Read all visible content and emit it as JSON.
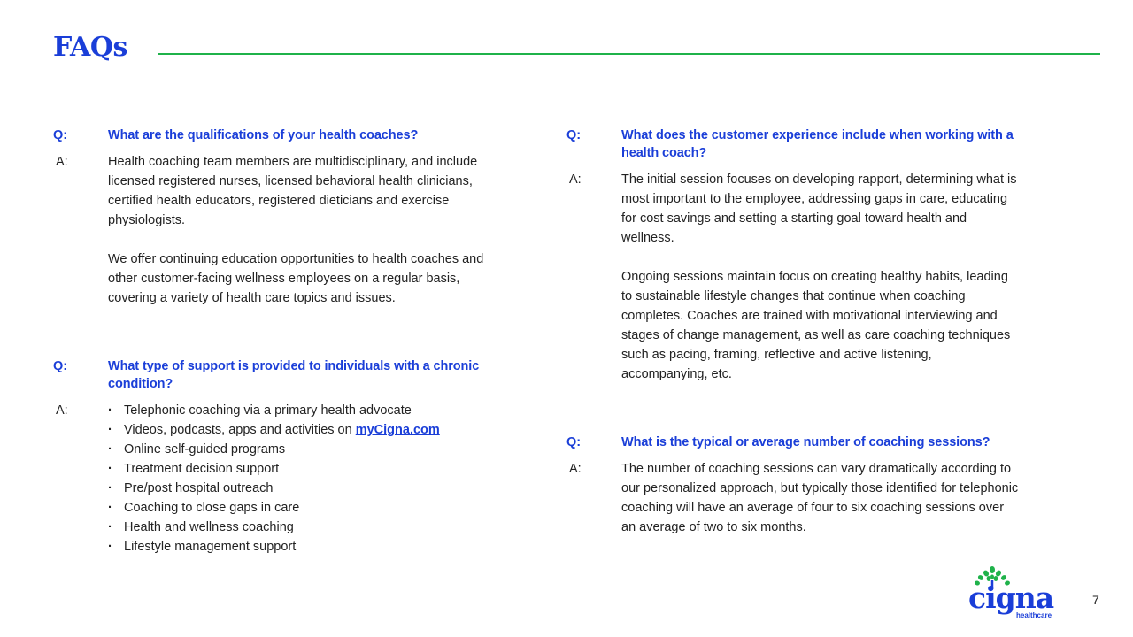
{
  "header": {
    "title": "FAQs"
  },
  "left": {
    "q1": {
      "q_tag": "Q:",
      "question": "What are the qualifications of your health coaches?",
      "a_tag": "A:",
      "answer_paragraphs": [
        "Health coaching team members are multidisciplinary, and include licensed registered nurses, licensed behavioral health clinicians, certified health educators, registered dieticians and exercise physiologists.",
        "We offer continuing education opportunities to health coaches and other customer-facing wellness employees on a regular basis, covering a variety of health care topics and issues."
      ]
    },
    "q2": {
      "q_tag": "Q:",
      "question": "What type of support is provided to individuals with a chronic condition?",
      "a_tag": "A:",
      "bullets": [
        "Telephonic coaching via a primary health advocate",
        "Videos, podcasts, apps and activities on",
        "Online self-guided programs",
        "Treatment decision support",
        "Pre/post hospital outreach",
        "Coaching to close gaps in care",
        "Health and wellness coaching",
        "Lifestyle management support"
      ],
      "link_text": "myCigna.com"
    }
  },
  "right": {
    "q3": {
      "q_tag": "Q:",
      "question": "What does the customer experience include when working with a health coach?",
      "a_tag": "A:",
      "answer_paragraphs": [
        "The initial session focuses on developing rapport, determining what is most important to the employee, addressing gaps in care, educating for cost savings and setting a starting goal toward health and wellness.",
        "Ongoing sessions maintain focus on creating healthy habits, leading to sustainable lifestyle changes that continue when coaching completes. Coaches are trained with motivational interviewing and stages of change management, as well as care coaching techniques such as pacing, framing, reflective and active listening, accompanying, etc."
      ]
    },
    "q4": {
      "q_tag": "Q:",
      "question": "What is the typical or average number of coaching sessions?",
      "a_tag": "A:",
      "answer_paragraphs": [
        "The number of coaching sessions can vary dramatically according to our personalized approach, but typically those identified for telephonic coaching will have an average of four to six coaching sessions over an average of two to six months."
      ]
    }
  },
  "footer": {
    "logo_word": "cigna",
    "logo_sub": "healthcare",
    "page_number": "7"
  },
  "colors": {
    "brand_blue": "#1a3ed8",
    "accent_green": "#1fb24a",
    "body_text": "#222222"
  },
  "icons": {
    "logo": "cigna-tree-of-life-icon"
  }
}
